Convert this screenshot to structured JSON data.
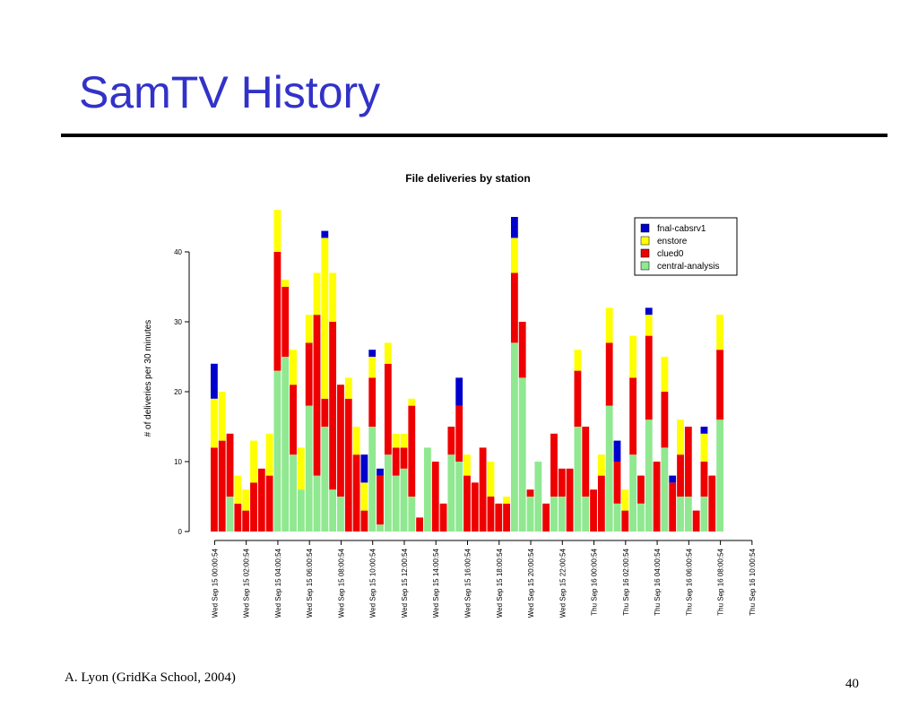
{
  "slide": {
    "title": "SamTV History",
    "footer_author": "A. Lyon (GridKa School, 2004)",
    "page_number": "40"
  },
  "chart_data": {
    "type": "bar",
    "stacked": true,
    "title": "File deliveries by station",
    "xlabel": "",
    "ylabel": "# of deliveries per 30 minutes",
    "ylim": [
      0,
      46
    ],
    "yticks": [
      0,
      10,
      20,
      30,
      40
    ],
    "xtick_labels": [
      "Wed Sep 15 00:00:54",
      "Wed Sep 15 02:00:54",
      "Wed Sep 15 04:00:54",
      "Wed Sep 15 06:00:54",
      "Wed Sep 15 08:00:54",
      "Wed Sep 15 10:00:54",
      "Wed Sep 15 12:00:54",
      "Wed Sep 15 14:00:54",
      "Wed Sep 15 16:00:54",
      "Wed Sep 15 18:00:54",
      "Wed Sep 15 20:00:54",
      "Wed Sep 15 22:00:54",
      "Thu Sep 16 00:00:54",
      "Thu Sep 16 02:00:54",
      "Thu Sep 16 04:00:54",
      "Thu Sep 16 06:00:54",
      "Thu Sep 16 08:00:54",
      "Thu Sep 16 10:00:54"
    ],
    "xtick_every": 4,
    "legend_position": "top-right",
    "series": [
      {
        "name": "central-analysis",
        "color": "#90e890",
        "values": [
          0,
          0,
          5,
          0,
          0,
          0,
          0,
          0,
          23,
          25,
          11,
          6,
          18,
          8,
          15,
          6,
          5,
          0,
          0,
          0,
          15,
          1,
          11,
          8,
          9,
          5,
          0,
          12,
          0,
          0,
          11,
          10,
          0,
          0,
          0,
          0,
          0,
          0,
          27,
          22,
          5,
          10,
          0,
          5,
          5,
          0,
          15,
          5,
          0,
          0,
          18,
          4,
          0,
          11,
          4,
          16,
          0,
          12,
          0,
          5,
          5,
          0,
          5,
          0,
          16
        ]
      },
      {
        "name": "clued0",
        "color": "#ee0000",
        "values": [
          12,
          13,
          9,
          4,
          3,
          7,
          9,
          8,
          17,
          10,
          10,
          0,
          9,
          23,
          4,
          24,
          16,
          19,
          11,
          3,
          7,
          7,
          13,
          4,
          3,
          13,
          2,
          0,
          10,
          4,
          4,
          8,
          8,
          7,
          12,
          5,
          4,
          4,
          10,
          8,
          1,
          0,
          4,
          9,
          4,
          9,
          8,
          10,
          6,
          8,
          9,
          6,
          3,
          11,
          4,
          12,
          10,
          8,
          7,
          6,
          10,
          3,
          5,
          8,
          10
        ]
      },
      {
        "name": "enstore",
        "color": "#ffff00",
        "values": [
          7,
          7,
          0,
          4,
          3,
          6,
          0,
          6,
          6,
          1,
          5,
          6,
          4,
          6,
          23,
          7,
          0,
          3,
          4,
          4,
          3,
          0,
          3,
          2,
          2,
          1,
          0,
          0,
          0,
          0,
          0,
          0,
          3,
          0,
          0,
          5,
          0,
          1,
          5,
          0,
          0,
          0,
          0,
          0,
          0,
          0,
          3,
          0,
          0,
          3,
          5,
          0,
          3,
          6,
          0,
          3,
          0,
          5,
          0,
          5,
          0,
          0,
          4,
          0,
          5
        ]
      },
      {
        "name": "fnal-cabsrv1",
        "color": "#0000cc",
        "values": [
          5,
          0,
          0,
          0,
          0,
          0,
          0,
          0,
          0,
          0,
          0,
          0,
          0,
          0,
          1,
          0,
          0,
          0,
          0,
          4,
          1,
          1,
          0,
          0,
          0,
          0,
          0,
          0,
          0,
          0,
          0,
          4,
          0,
          0,
          0,
          0,
          0,
          0,
          3,
          0,
          0,
          0,
          0,
          0,
          0,
          0,
          0,
          0,
          0,
          0,
          0,
          3,
          0,
          0,
          0,
          1,
          0,
          0,
          1,
          0,
          0,
          0,
          1,
          0,
          0
        ]
      }
    ]
  }
}
